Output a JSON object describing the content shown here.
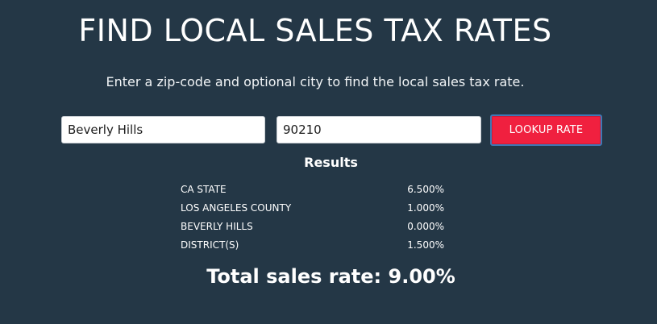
{
  "header": {
    "title": "FIND LOCAL SALES TAX RATES",
    "subtitle": "Enter a zip-code and optional city to find the local sales tax rate."
  },
  "form": {
    "city_value": "Beverly Hills",
    "zip_value": "90210",
    "lookup_label": "LOOKUP RATE"
  },
  "results": {
    "heading": "Results",
    "rows": [
      {
        "label": "CA STATE",
        "value": "6.500%"
      },
      {
        "label": "LOS ANGELES COUNTY",
        "value": "1.000%"
      },
      {
        "label": "BEVERLY HILLS",
        "value": "0.000%"
      },
      {
        "label": "DISTRICT(S)",
        "value": "1.500%"
      }
    ],
    "total": "Total sales rate: 9.00%"
  },
  "colors": {
    "background": "#243746",
    "button": "#f0203f",
    "button_border": "#3f78b5"
  }
}
